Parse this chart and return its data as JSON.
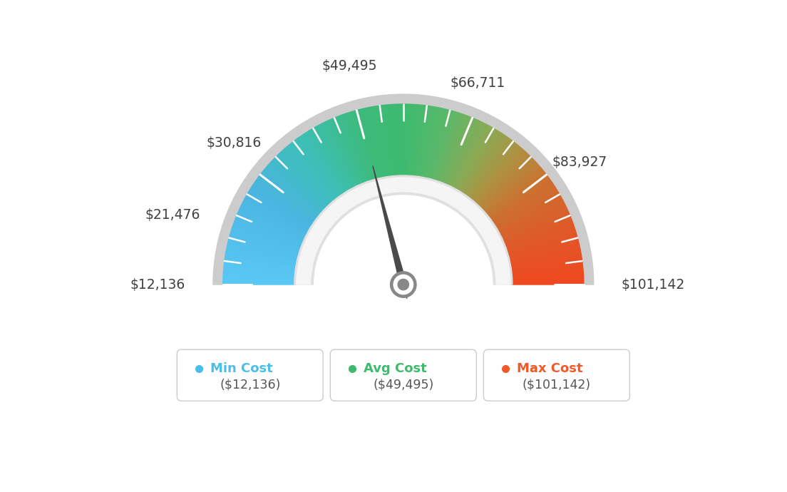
{
  "min_value": 12136,
  "max_value": 101142,
  "avg_value": 49495,
  "label_values": [
    12136,
    21476,
    30816,
    49495,
    66711,
    83927,
    101142
  ],
  "label_texts": [
    "$12,136",
    "$21,476",
    "$30,816",
    "$49,495",
    "$66,711",
    "$83,927",
    "$101,142"
  ],
  "legend_items": [
    {
      "label": "Min Cost",
      "value": "($12,136)",
      "color": "#4bbee8"
    },
    {
      "label": "Avg Cost",
      "value": "($49,495)",
      "color": "#3dba6e"
    },
    {
      "label": "Max Cost",
      "value": "($101,142)",
      "color": "#f05a28"
    }
  ],
  "bg_color": "#ffffff",
  "needle_color": "#4a4a4a",
  "pivot_outer_color": "#606060",
  "color_stops": [
    [
      0.0,
      "#5ac8f5"
    ],
    [
      0.18,
      "#4ab5e0"
    ],
    [
      0.3,
      "#3dbfb8"
    ],
    [
      0.42,
      "#3dba7a"
    ],
    [
      0.5,
      "#3dba6e"
    ],
    [
      0.58,
      "#5ab86a"
    ],
    [
      0.66,
      "#8aaa55"
    ],
    [
      0.73,
      "#b09040"
    ],
    [
      0.8,
      "#cc7030"
    ],
    [
      0.9,
      "#e05828"
    ],
    [
      1.0,
      "#f04820"
    ]
  ]
}
